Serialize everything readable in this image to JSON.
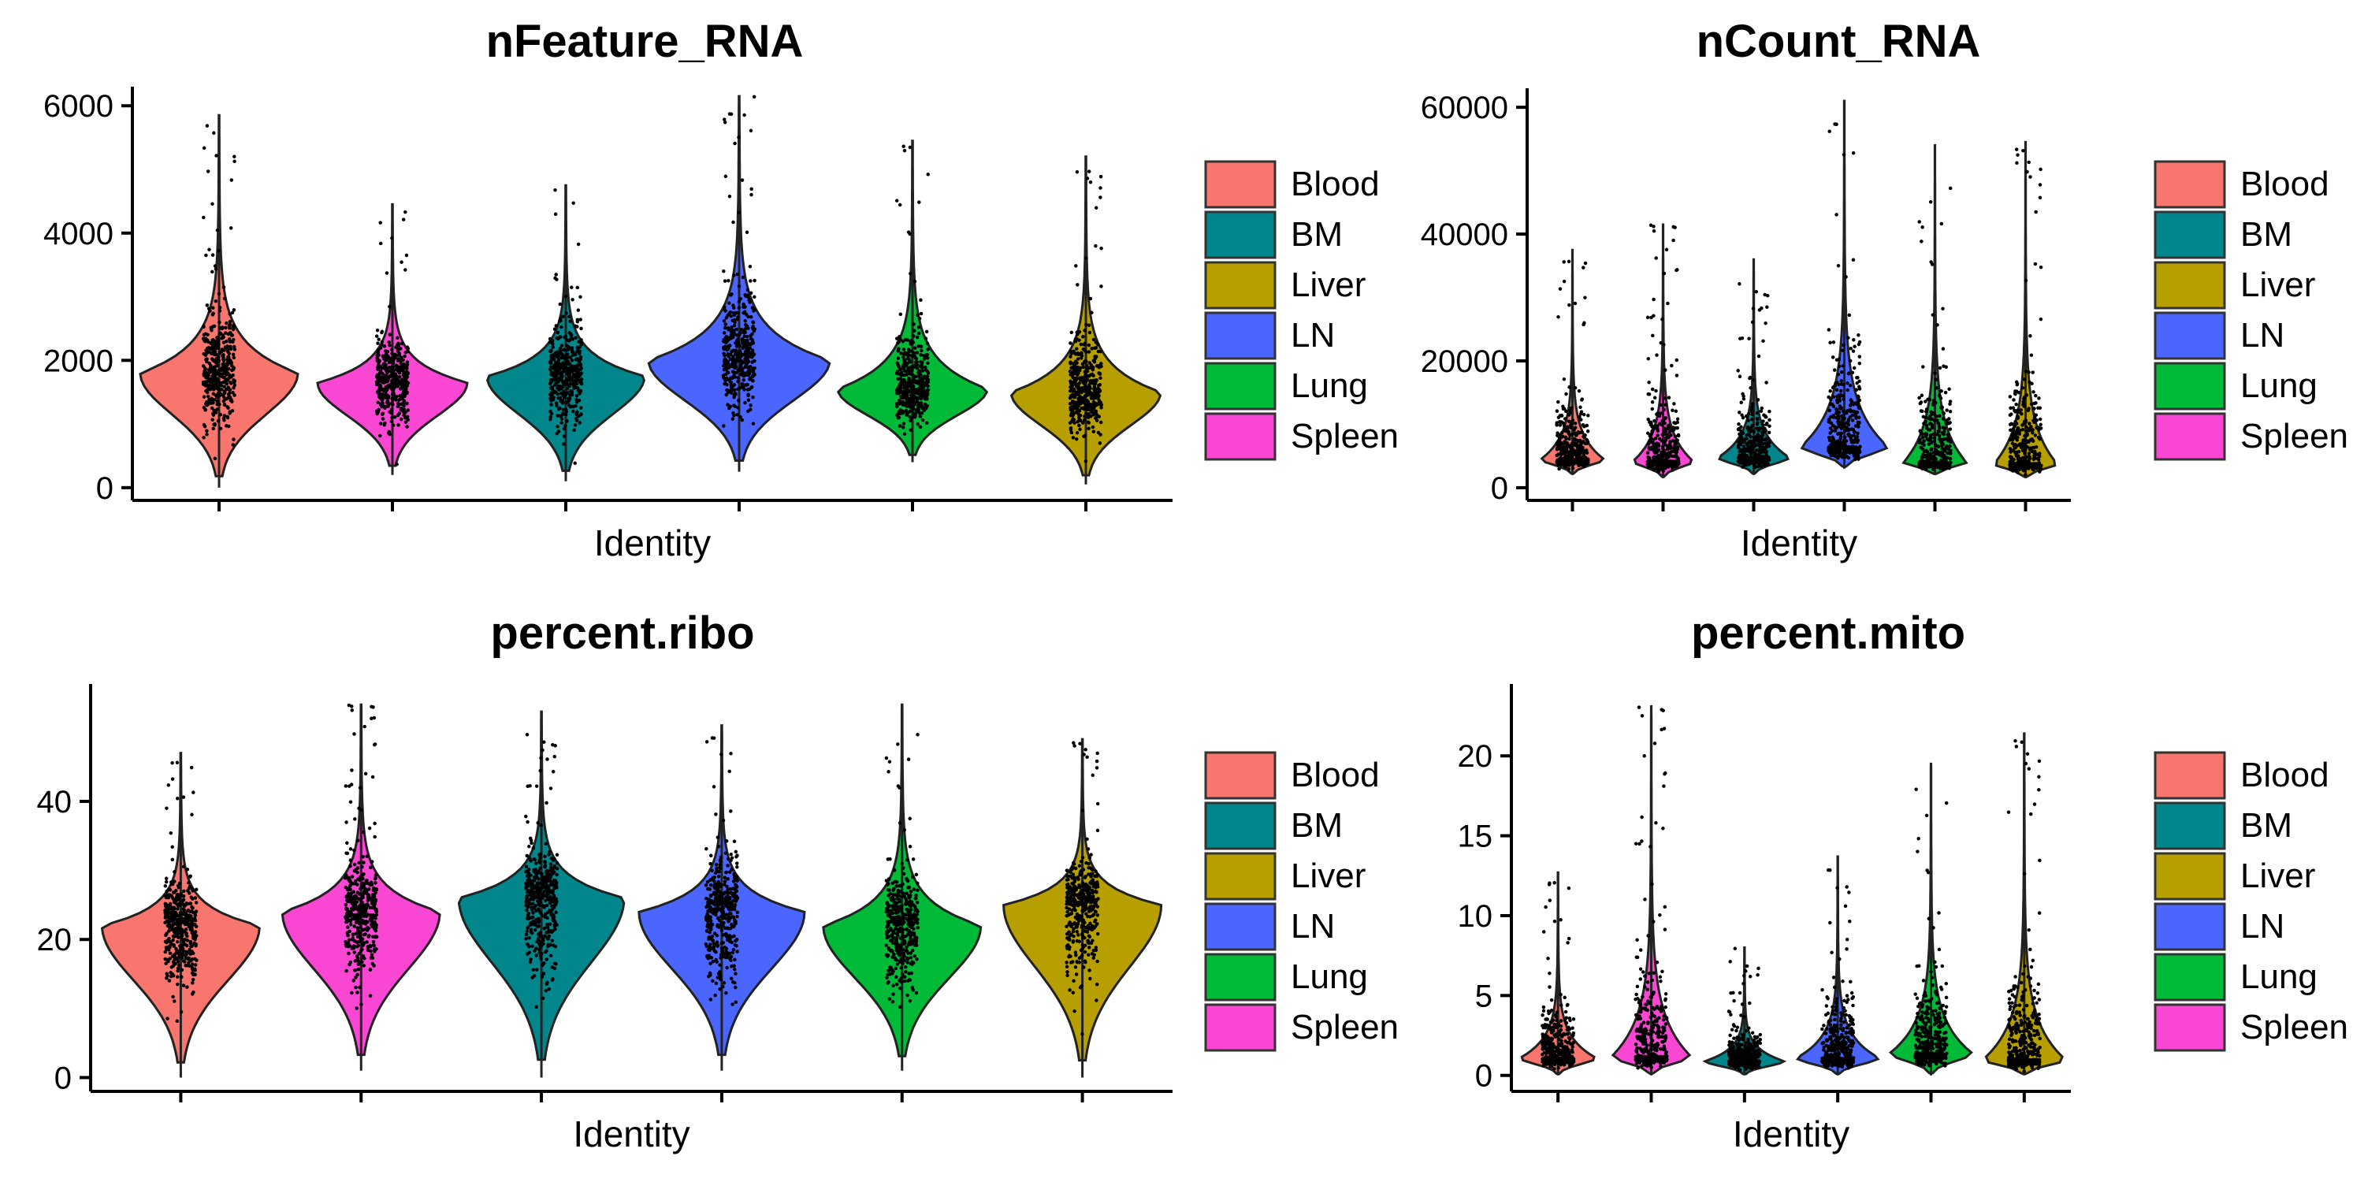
{
  "chart_data": [
    {
      "type": "violin",
      "title": "nFeature_RNA",
      "xlabel": "Identity",
      "ylabel": "",
      "ylim": [
        -200,
        6300
      ],
      "yticks": [
        "0",
        "2000",
        "4000",
        "6000"
      ],
      "ytick_values": [
        0,
        2000,
        4000,
        6000
      ],
      "categories": [
        "Blood",
        "Spleen",
        "BM",
        "LN",
        "Lung",
        "Liver"
      ],
      "legend": [
        "Blood",
        "BM",
        "Liver",
        "LN",
        "Lung",
        "Spleen"
      ],
      "series": [
        {
          "name": "Blood",
          "min": 0,
          "max": 5850,
          "median": 1800
        },
        {
          "name": "Spleen",
          "min": 200,
          "max": 4450,
          "median": 1650
        },
        {
          "name": "BM",
          "min": 100,
          "max": 4750,
          "median": 1750
        },
        {
          "name": "LN",
          "min": 250,
          "max": 6150,
          "median": 2000
        },
        {
          "name": "Lung",
          "min": 400,
          "max": 5450,
          "median": 1550
        },
        {
          "name": "Liver",
          "min": 50,
          "max": 5200,
          "median": 1500
        }
      ]
    },
    {
      "type": "violin",
      "title": "nCount_RNA",
      "xlabel": "Identity",
      "ylabel": "",
      "ylim": [
        -2000,
        63000
      ],
      "yticks": [
        "0",
        "20000",
        "40000",
        "60000"
      ],
      "ytick_values": [
        0,
        20000,
        40000,
        60000
      ],
      "categories": [
        "Blood",
        "Spleen",
        "BM",
        "LN",
        "Lung",
        "Liver"
      ],
      "legend": [
        "Blood",
        "BM",
        "Liver",
        "LN",
        "Lung",
        "Spleen"
      ],
      "series": [
        {
          "name": "Blood",
          "min": 2000,
          "max": 37500,
          "median": 4500
        },
        {
          "name": "Spleen",
          "min": 1500,
          "max": 41500,
          "median": 4200
        },
        {
          "name": "BM",
          "min": 2000,
          "max": 36000,
          "median": 4800
        },
        {
          "name": "LN",
          "min": 3000,
          "max": 61000,
          "median": 6500
        },
        {
          "name": "Lung",
          "min": 2000,
          "max": 54000,
          "median": 4000
        },
        {
          "name": "Liver",
          "min": 1500,
          "max": 54500,
          "median": 3800
        }
      ]
    },
    {
      "type": "violin",
      "title": "percent.ribo",
      "xlabel": "Identity",
      "ylabel": "",
      "ylim": [
        -2,
        57
      ],
      "yticks": [
        "0",
        "20",
        "40"
      ],
      "ytick_values": [
        0,
        20,
        40
      ],
      "categories": [
        "Blood",
        "Spleen",
        "BM",
        "LN",
        "Lung",
        "Liver"
      ],
      "legend": [
        "Blood",
        "BM",
        "Liver",
        "LN",
        "Lung",
        "Spleen"
      ],
      "series": [
        {
          "name": "Blood",
          "min": 0,
          "max": 47,
          "median": 22
        },
        {
          "name": "Spleen",
          "min": 1,
          "max": 54,
          "median": 24
        },
        {
          "name": "BM",
          "min": 0,
          "max": 53,
          "median": 26
        },
        {
          "name": "LN",
          "min": 1,
          "max": 51,
          "median": 24
        },
        {
          "name": "Lung",
          "min": 1,
          "max": 54,
          "median": 22
        },
        {
          "name": "Liver",
          "min": 0,
          "max": 49,
          "median": 25
        }
      ]
    },
    {
      "type": "violin",
      "title": "percent.mito",
      "xlabel": "Identity",
      "ylabel": "",
      "ylim": [
        -1,
        24.5
      ],
      "yticks": [
        "0",
        "5",
        "10",
        "15",
        "20"
      ],
      "ytick_values": [
        0,
        5,
        10,
        15,
        20
      ],
      "categories": [
        "Blood",
        "Spleen",
        "BM",
        "LN",
        "Lung",
        "Liver"
      ],
      "legend": [
        "Blood",
        "BM",
        "Liver",
        "LN",
        "Lung",
        "Spleen"
      ],
      "series": [
        {
          "name": "Blood",
          "min": 0,
          "max": 12.7,
          "median": 1.1
        },
        {
          "name": "Spleen",
          "min": 0,
          "max": 23.1,
          "median": 1.2
        },
        {
          "name": "BM",
          "min": 0,
          "max": 8.0,
          "median": 0.9
        },
        {
          "name": "LN",
          "min": 0,
          "max": 13.7,
          "median": 1.1
        },
        {
          "name": "Lung",
          "min": 0,
          "max": 19.5,
          "median": 1.4
        },
        {
          "name": "Liver",
          "min": 0,
          "max": 21.4,
          "median": 1.0
        }
      ]
    }
  ],
  "colors": {
    "Blood": "#F8766D",
    "BM": "#00868B",
    "Liver": "#B79F00",
    "LN": "#4A66FF",
    "Lung": "#00BA38",
    "Spleen": "#F946D3"
  }
}
